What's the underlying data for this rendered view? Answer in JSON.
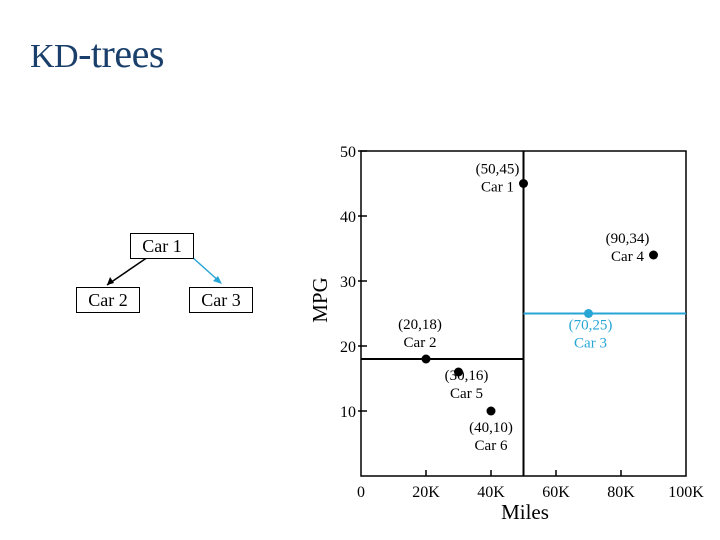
{
  "title": {
    "prefix": "KD",
    "suffix": "-trees"
  },
  "tree": {
    "root": "Car 1",
    "left": "Car 2",
    "right": "Car 3"
  },
  "colors": {
    "highlight": "#27a6d6",
    "title": "#1a3f6b",
    "ink": "#000000"
  },
  "chart_data": {
    "type": "scatter",
    "xlabel": "Miles",
    "ylabel": "MPG",
    "xlim": [
      0,
      100000
    ],
    "ylim": [
      0,
      50
    ],
    "x_ticks": [
      "0",
      "20K",
      "40K",
      "60K",
      "80K",
      "100K"
    ],
    "y_ticks": [
      "10",
      "20",
      "30",
      "40",
      "50"
    ],
    "points": [
      {
        "coord": "(50,45)",
        "label": "Car 1",
        "x": 50000,
        "y": 45,
        "highlight": false
      },
      {
        "coord": "(20,18)",
        "label": "Car 2",
        "x": 20000,
        "y": 18,
        "highlight": false
      },
      {
        "coord": "(70,25)",
        "label": "Car 3",
        "x": 70000,
        "y": 25,
        "highlight": true
      },
      {
        "coord": "(90,34)",
        "label": "Car 4",
        "x": 90000,
        "y": 34,
        "highlight": false
      },
      {
        "coord": "(30,16)",
        "label": "Car 5",
        "x": 30000,
        "y": 16,
        "highlight": false
      },
      {
        "coord": "(40,10)",
        "label": "Car 6",
        "x": 40000,
        "y": 10,
        "highlight": false
      }
    ],
    "splits": [
      {
        "axis": "x",
        "at": 50000,
        "node": "Car 1"
      },
      {
        "axis": "y",
        "at": 18,
        "node": "Car 2"
      },
      {
        "axis": "y",
        "at": 25,
        "node": "Car 3"
      }
    ]
  }
}
